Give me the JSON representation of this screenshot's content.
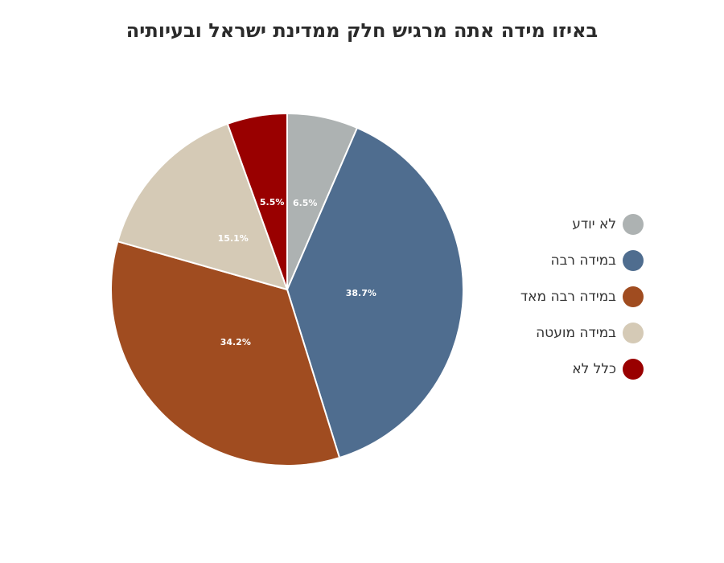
{
  "chart_data": {
    "type": "pie",
    "title": "באיזו מידה אתה מרגיש חלק ממדינת ישראל ובעיותיה",
    "categories": [
      "לא יודע",
      "במידה רבה",
      "במידה רבה מאד",
      "במידה מועטה",
      "כלל לא"
    ],
    "values": [
      6.5,
      38.7,
      34.2,
      15.1,
      5.5
    ],
    "data_labels": [
      "6.5%",
      "38.7%",
      "34.2%",
      "15.1%",
      "5.5%"
    ],
    "colors": [
      "#adb2b2",
      "#4f6d8f",
      "#a04c20",
      "#d5cab6",
      "#990000"
    ],
    "start_angle": "12 o'clock, clockwise",
    "legend_position": "right"
  }
}
